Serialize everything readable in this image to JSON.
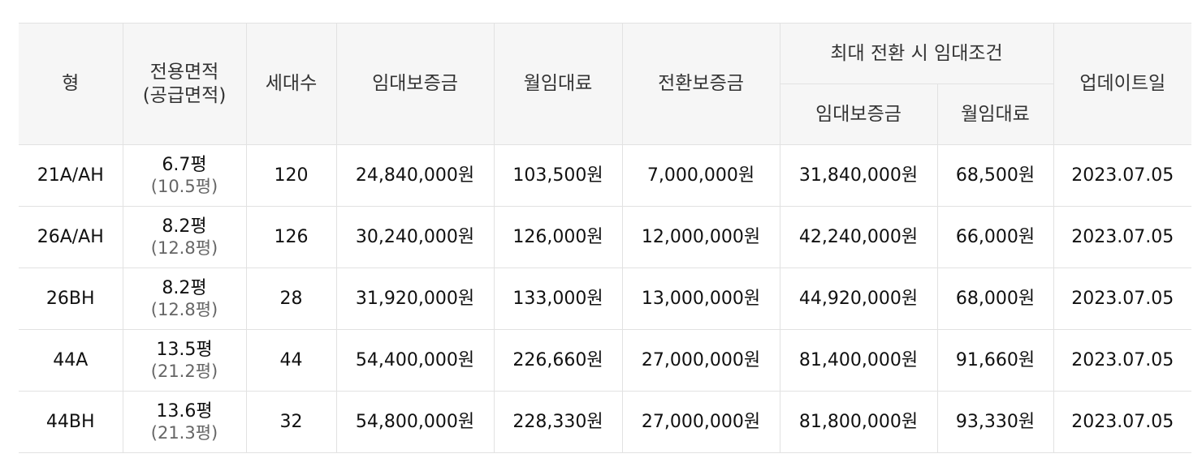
{
  "headers": {
    "type": "형",
    "area_line1": "전용면적",
    "area_line2": "(공급면적)",
    "households": "세대수",
    "deposit": "임대보증금",
    "monthly": "월임대료",
    "conversion_deposit": "전환보증금",
    "max_group": "최대 전환 시 임대조건",
    "max_deposit": "임대보증금",
    "max_monthly": "월임대료",
    "updated": "업데이트일"
  },
  "rows": [
    {
      "type": "21A/AH",
      "area": "6.7평",
      "supply_area": "(10.5평)",
      "households": "120",
      "deposit": "24,840,000원",
      "monthly": "103,500원",
      "conversion_deposit": "7,000,000원",
      "max_deposit": "31,840,000원",
      "max_monthly": "68,500원",
      "updated": "2023.07.05"
    },
    {
      "type": "26A/AH",
      "area": "8.2평",
      "supply_area": "(12.8평)",
      "households": "126",
      "deposit": "30,240,000원",
      "monthly": "126,000원",
      "conversion_deposit": "12,000,000원",
      "max_deposit": "42,240,000원",
      "max_monthly": "66,000원",
      "updated": "2023.07.05"
    },
    {
      "type": "26BH",
      "area": "8.2평",
      "supply_area": "(12.8평)",
      "households": "28",
      "deposit": "31,920,000원",
      "monthly": "133,000원",
      "conversion_deposit": "13,000,000원",
      "max_deposit": "44,920,000원",
      "max_monthly": "68,000원",
      "updated": "2023.07.05"
    },
    {
      "type": "44A",
      "area": "13.5평",
      "supply_area": "(21.2평)",
      "households": "44",
      "deposit": "54,400,000원",
      "monthly": "226,660원",
      "conversion_deposit": "27,000,000원",
      "max_deposit": "81,400,000원",
      "max_monthly": "91,660원",
      "updated": "2023.07.05"
    },
    {
      "type": "44BH",
      "area": "13.6평",
      "supply_area": "(21.3평)",
      "households": "32",
      "deposit": "54,800,000원",
      "monthly": "228,330원",
      "conversion_deposit": "27,000,000원",
      "max_deposit": "81,800,000원",
      "max_monthly": "93,330원",
      "updated": "2023.07.05"
    }
  ]
}
